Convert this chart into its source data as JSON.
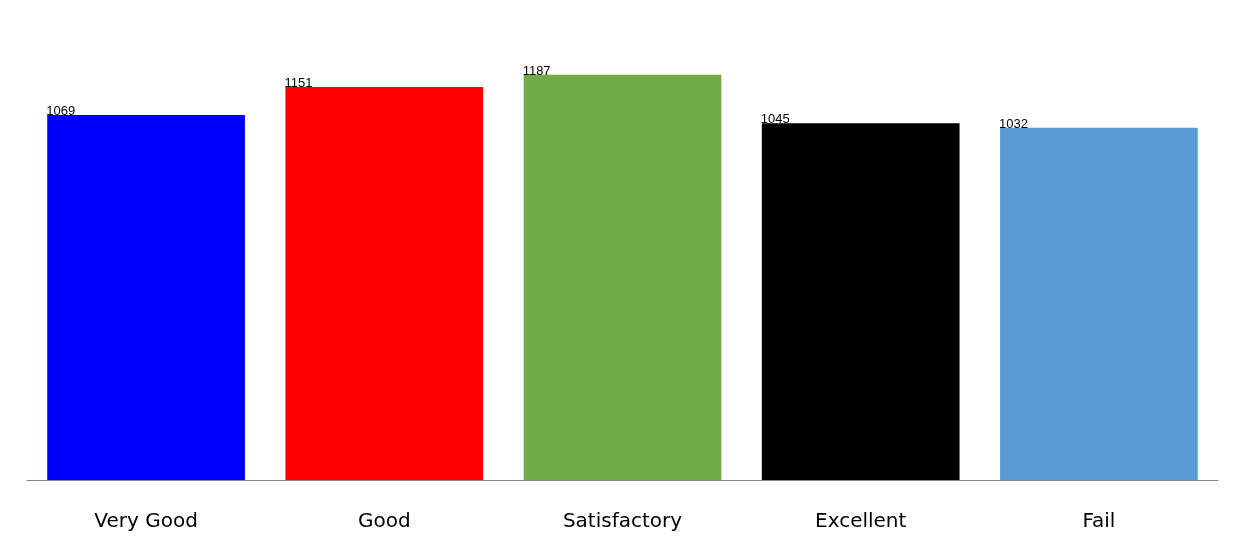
{
  "chart_data": {
    "type": "bar",
    "categories": [
      "Very Good",
      "Good",
      "Satisfactory",
      "Excellent",
      "Fail"
    ],
    "values": [
      1069,
      1151,
      1187,
      1045,
      1032
    ],
    "colors": [
      "#0000ff",
      "#ff0000",
      "#70ad47",
      "#000000",
      "#5b9bd5"
    ],
    "data_labels": true
  }
}
